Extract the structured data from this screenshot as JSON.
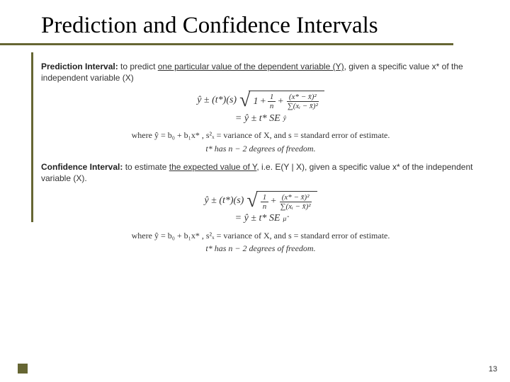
{
  "title": "Prediction and Confidence Intervals",
  "page_number": "13",
  "prediction": {
    "label": "Prediction Interval:",
    "def_a": " to predict ",
    "def_u": "one particular value of the dependent variable (Y)",
    "def_b": ", given a specific value x* of the independent variable (X)",
    "seline": "= ŷ ± t* SE",
    "sesub": "ŷ",
    "where_a": "where  ",
    "where_b": "ŷ = b₀ + b₁x* ,  s²ₓ = variance of X,  and  s = standard error of estimate.",
    "where_c": "t* has n − 2 degrees of freedom."
  },
  "confidence": {
    "label": "Confidence Interval:",
    "def_a": " to estimate ",
    "def_u": "the expected value of Y",
    "def_b": ", i.e. E(Y | X), given a specific value x* of the independent variable (X).",
    "seline": "= ŷ ± t* SE",
    "sesub": "μ̂",
    "where_a": "where  ",
    "where_b": "ŷ = b₀ + b₁x* ,  s²ₓ = variance of X,  and  s = standard error of estimate.",
    "where_c": "t* has n − 2 degrees of freedom."
  },
  "formula": {
    "lead": "ŷ ± (t*)(s)",
    "one": "1",
    "plus": " + ",
    "frac1_num": "1",
    "frac1_den": "n",
    "num2": "(x* − x̄)²",
    "den2": "∑(xᵢ − x̄)²"
  }
}
